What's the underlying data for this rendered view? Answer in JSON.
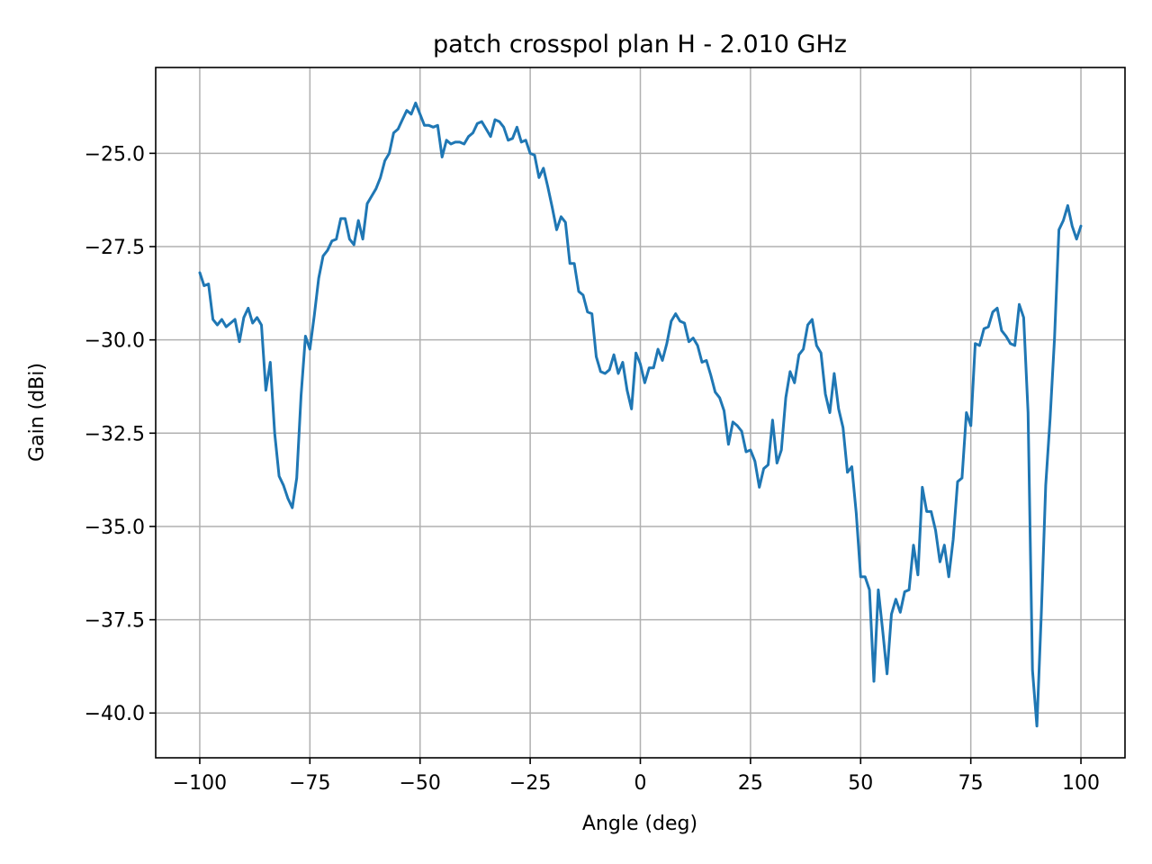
{
  "chart_data": {
    "type": "line",
    "title": "patch crosspol plan H - 2.010 GHz",
    "xlabel": "Angle (deg)",
    "ylabel": "Gain (dBi)",
    "xlim": [
      -110,
      110
    ],
    "ylim": [
      -41.2,
      -22.7
    ],
    "xticks": [
      -100,
      -75,
      -50,
      -25,
      0,
      25,
      50,
      75,
      100
    ],
    "xtick_labels": [
      "−100",
      "−75",
      "−50",
      "−25",
      "0",
      "25",
      "50",
      "75",
      "100"
    ],
    "yticks": [
      -25.0,
      -27.5,
      -30.0,
      -32.5,
      -35.0,
      -37.5,
      -40.0
    ],
    "ytick_labels": [
      "−25.0",
      "−27.5",
      "−30.0",
      "−32.5",
      "−35.0",
      "−37.5",
      "−40.0"
    ],
    "grid": true,
    "color": "#1f77b4",
    "series": [
      {
        "x": [
          -100,
          -99,
          -98,
          -97,
          -96,
          -95,
          -94,
          -93,
          -92,
          -91,
          -90,
          -89,
          -88,
          -87,
          -86,
          -85,
          -84,
          -83,
          -82,
          -81,
          -80,
          -79,
          -78,
          -77,
          -76,
          -75,
          -74,
          -73,
          -72,
          -71,
          -70,
          -69,
          -68,
          -67,
          -66,
          -65,
          -64,
          -63,
          -62,
          -61,
          -60,
          -59,
          -58,
          -57,
          -56,
          -55,
          -54,
          -53,
          -52,
          -51,
          -50,
          -49,
          -48,
          -47,
          -46,
          -45,
          -44,
          -43,
          -42,
          -41,
          -40,
          -39,
          -38,
          -37,
          -36,
          -35,
          -34,
          -33,
          -32,
          -31,
          -30,
          -29,
          -28,
          -27,
          -26,
          -25,
          -24,
          -23,
          -22,
          -21,
          -20,
          -19,
          -18,
          -17,
          -16,
          -15,
          -14,
          -13,
          -12,
          -11,
          -10,
          -9,
          -8,
          -7,
          -6,
          -5,
          -4,
          -3,
          -2,
          -1,
          0,
          1,
          2,
          3,
          4,
          5,
          6,
          7,
          8,
          9,
          10,
          11,
          12,
          13,
          14,
          15,
          16,
          17,
          18,
          19,
          20,
          21,
          22,
          23,
          24,
          25,
          26,
          27,
          28,
          29,
          30,
          31,
          32,
          33,
          34,
          35,
          36,
          37,
          38,
          39,
          40,
          41,
          42,
          43,
          44,
          45,
          46,
          47,
          48,
          49,
          50,
          51,
          52,
          53,
          54,
          55,
          56,
          57,
          58,
          59,
          60,
          61,
          62,
          63,
          64,
          65,
          66,
          67,
          68,
          69,
          70,
          71,
          72,
          73,
          74,
          75,
          76,
          77,
          78,
          79,
          80,
          81,
          82,
          83,
          84,
          85,
          86,
          87,
          88,
          89,
          90,
          91,
          92,
          93,
          94,
          95,
          96,
          97,
          98,
          99,
          100
        ],
        "y": [
          -28.2,
          -28.55,
          -28.5,
          -29.45,
          -29.6,
          -29.45,
          -29.65,
          -29.55,
          -29.45,
          -30.05,
          -29.4,
          -29.15,
          -29.55,
          -29.4,
          -29.6,
          -31.35,
          -30.6,
          -32.5,
          -33.65,
          -33.9,
          -34.25,
          -34.5,
          -33.7,
          -31.5,
          -29.9,
          -30.25,
          -29.35,
          -28.35,
          -27.75,
          -27.6,
          -27.35,
          -27.3,
          -26.75,
          -26.75,
          -27.3,
          -27.45,
          -26.8,
          -27.3,
          -26.35,
          -26.15,
          -25.95,
          -25.65,
          -25.2,
          -25.0,
          -24.45,
          -24.35,
          -24.1,
          -23.85,
          -23.95,
          -23.65,
          -23.95,
          -24.25,
          -24.25,
          -24.3,
          -24.25,
          -25.1,
          -24.65,
          -24.75,
          -24.7,
          -24.7,
          -24.75,
          -24.55,
          -24.45,
          -24.2,
          -24.15,
          -24.35,
          -24.55,
          -24.1,
          -24.15,
          -24.3,
          -24.65,
          -24.6,
          -24.3,
          -24.7,
          -24.65,
          -25.0,
          -25.05,
          -25.65,
          -25.4,
          -25.9,
          -26.45,
          -27.05,
          -26.7,
          -26.85,
          -27.95,
          -27.95,
          -28.7,
          -28.8,
          -29.25,
          -29.3,
          -30.45,
          -30.85,
          -30.9,
          -30.8,
          -30.4,
          -30.9,
          -30.6,
          -31.35,
          -31.85,
          -30.35,
          -30.65,
          -31.15,
          -30.75,
          -30.75,
          -30.25,
          -30.55,
          -30.1,
          -29.5,
          -29.3,
          -29.5,
          -29.55,
          -30.05,
          -29.95,
          -30.15,
          -30.6,
          -30.55,
          -30.95,
          -31.4,
          -31.55,
          -31.9,
          -32.8,
          -32.2,
          -32.3,
          -32.45,
          -33.0,
          -32.95,
          -33.25,
          -33.95,
          -33.45,
          -33.35,
          -32.15,
          -33.3,
          -32.95,
          -31.55,
          -30.85,
          -31.15,
          -30.4,
          -30.25,
          -29.6,
          -29.45,
          -30.15,
          -30.35,
          -31.45,
          -31.95,
          -30.9,
          -31.85,
          -32.35,
          -33.55,
          -33.4,
          -34.65,
          -36.35,
          -36.35,
          -36.7,
          -39.15,
          -36.7,
          -37.8,
          -38.95,
          -37.35,
          -36.95,
          -37.3,
          -36.75,
          -36.7,
          -35.5,
          -36.3,
          -33.95,
          -34.6,
          -34.6,
          -35.1,
          -35.95,
          -35.5,
          -36.35,
          -35.35,
          -33.8,
          -33.7,
          -31.95,
          -32.3,
          -30.1,
          -30.15,
          -29.7,
          -29.65,
          -29.25,
          -29.15,
          -29.75,
          -29.9,
          -30.1,
          -30.15,
          -29.05,
          -29.4,
          -31.95,
          -38.85,
          -40.35,
          -37.35,
          -33.9,
          -32.1,
          -29.95,
          -27.05,
          -26.8,
          -26.4,
          -26.95,
          -27.3,
          -26.95
        ]
      }
    ]
  }
}
